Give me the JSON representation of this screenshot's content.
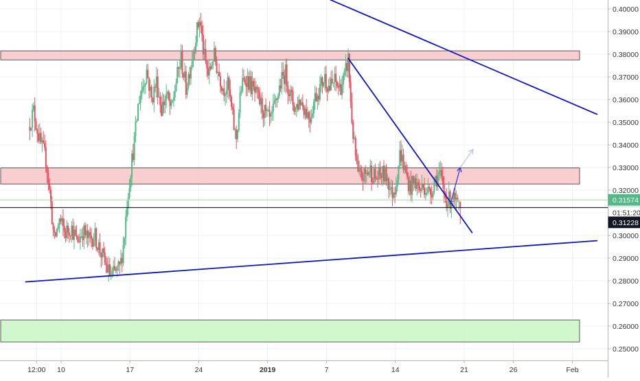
{
  "chart_data": {
    "type": "candlestick",
    "y_axis": {
      "min": 0.2455,
      "max": 0.4035,
      "ticks": [
        "0.40000",
        "0.39000",
        "0.38000",
        "0.37000",
        "0.36000",
        "0.35000",
        "0.34000",
        "0.33000",
        "0.32000",
        "0.31000",
        "0.30000",
        "0.29000",
        "0.28000",
        "0.27000",
        "0.26000",
        "0.25000"
      ]
    },
    "x_axis": {
      "min_day": -2.3,
      "max_day": 44.8,
      "ticks": [
        {
          "label": "12:00",
          "day": -1.5,
          "bold": false
        },
        {
          "label": "10",
          "day": 1,
          "bold": false
        },
        {
          "label": "17",
          "day": 8,
          "bold": false
        },
        {
          "label": "24",
          "day": 15,
          "bold": false
        },
        {
          "label": "2019",
          "day": 22,
          "bold": true
        },
        {
          "label": "7",
          "day": 28,
          "bold": false
        },
        {
          "label": "14",
          "day": 35,
          "bold": false
        },
        {
          "label": "21",
          "day": 42,
          "bold": false
        },
        {
          "label": "26",
          "day": 47,
          "bold": false
        },
        {
          "label": "Feb",
          "day": 53,
          "bold": false
        }
      ]
    },
    "x_axis_range_note": "",
    "zones": [
      {
        "name": "resistance-zone-upper",
        "y_low": 0.3775,
        "y_high": 0.3815,
        "color": "#f8c5c8",
        "border": "#333333"
      },
      {
        "name": "resistance-zone-middle",
        "y_low": 0.3227,
        "y_high": 0.3298,
        "color": "#f8c5c8",
        "border": "#333333"
      },
      {
        "name": "support-zone-lower",
        "y_low": 0.253,
        "y_high": 0.2627,
        "color": "#c9f7c4",
        "border": "#333333"
      }
    ],
    "trendlines": [
      {
        "name": "upper-downtrend-line",
        "x1_day": 28.4,
        "y1": 0.404,
        "x2_day": 55.5,
        "y2": 0.3535,
        "color": "#0a14c8"
      },
      {
        "name": "steep-downtrend-line",
        "x1_day": 30.2,
        "y1": 0.3782,
        "x2_day": 42.8,
        "y2": 0.3013,
        "color": "#0a14c8"
      },
      {
        "name": "ascending-support-line",
        "x1_day": -2.6,
        "y1": 0.2795,
        "x2_day": 55.5,
        "y2": 0.2977,
        "color": "#0a14c8"
      }
    ],
    "projection": {
      "points": [
        [
          40.6,
          0.314
        ],
        [
          41.6,
          0.33
        ],
        [
          42.9,
          0.338
        ]
      ],
      "color": "#2433d6",
      "faded_color": "#b8bde6"
    },
    "horizontal_lines": [
      {
        "name": "current-price-line",
        "y": 0.3123,
        "color": "#000000"
      },
      {
        "name": "reference-price-line",
        "y": 0.3157,
        "color": "#a6dba0"
      }
    ],
    "price_labels": [
      {
        "name": "reference-price-label",
        "text": "0.31574",
        "y": 0.3157,
        "bg": "#53b987",
        "fg": "#ffffff"
      },
      {
        "name": "countdown-label",
        "text": "01:51:20",
        "y": 0.3102,
        "bg": "#ffffff",
        "fg": "#333333"
      },
      {
        "name": "current-price-label",
        "text": "0.31228",
        "y": 0.3058,
        "bg": "#131722",
        "fg": "#ffffff"
      }
    ],
    "price_path": [
      [
        -2.3,
        0.348
      ],
      [
        -1.8,
        0.355
      ],
      [
        -1.2,
        0.342
      ],
      [
        -0.5,
        0.333
      ],
      [
        0.0,
        0.312
      ],
      [
        0.3,
        0.297
      ],
      [
        0.8,
        0.307
      ],
      [
        1.4,
        0.301
      ],
      [
        2.0,
        0.304
      ],
      [
        2.6,
        0.297
      ],
      [
        3.2,
        0.302
      ],
      [
        3.8,
        0.298
      ],
      [
        4.4,
        0.3
      ],
      [
        5.0,
        0.293
      ],
      [
        5.6,
        0.286
      ],
      [
        6.1,
        0.282
      ],
      [
        6.6,
        0.284
      ],
      [
        7.0,
        0.286
      ],
      [
        7.4,
        0.298
      ],
      [
        7.7,
        0.315
      ],
      [
        8.1,
        0.33
      ],
      [
        8.5,
        0.343
      ],
      [
        8.9,
        0.36
      ],
      [
        9.3,
        0.366
      ],
      [
        9.7,
        0.373
      ],
      [
        10.2,
        0.36
      ],
      [
        10.7,
        0.368
      ],
      [
        11.2,
        0.356
      ],
      [
        11.7,
        0.362
      ],
      [
        12.2,
        0.355
      ],
      [
        12.7,
        0.368
      ],
      [
        13.2,
        0.378
      ],
      [
        13.7,
        0.365
      ],
      [
        14.2,
        0.376
      ],
      [
        14.7,
        0.388
      ],
      [
        15.1,
        0.396
      ],
      [
        15.5,
        0.38
      ],
      [
        16.0,
        0.37
      ],
      [
        16.5,
        0.38
      ],
      [
        17.0,
        0.372
      ],
      [
        17.5,
        0.365
      ],
      [
        18.0,
        0.366
      ],
      [
        18.4,
        0.353
      ],
      [
        18.8,
        0.342
      ],
      [
        19.3,
        0.365
      ],
      [
        19.8,
        0.37
      ],
      [
        20.3,
        0.366
      ],
      [
        20.8,
        0.362
      ],
      [
        21.3,
        0.358
      ],
      [
        21.8,
        0.353
      ],
      [
        22.3,
        0.35
      ],
      [
        22.8,
        0.358
      ],
      [
        23.3,
        0.367
      ],
      [
        23.8,
        0.372
      ],
      [
        24.3,
        0.362
      ],
      [
        24.8,
        0.356
      ],
      [
        25.3,
        0.36
      ],
      [
        25.8,
        0.356
      ],
      [
        26.3,
        0.352
      ],
      [
        26.8,
        0.361
      ],
      [
        27.3,
        0.365
      ],
      [
        27.8,
        0.37
      ],
      [
        28.3,
        0.365
      ],
      [
        28.8,
        0.368
      ],
      [
        29.3,
        0.365
      ],
      [
        29.8,
        0.369
      ],
      [
        30.2,
        0.378
      ],
      [
        30.5,
        0.355
      ],
      [
        30.8,
        0.34
      ],
      [
        31.2,
        0.326
      ],
      [
        31.8,
        0.326
      ],
      [
        32.4,
        0.329
      ],
      [
        33.0,
        0.325
      ],
      [
        33.6,
        0.327
      ],
      [
        34.2,
        0.326
      ],
      [
        34.6,
        0.318
      ],
      [
        35.0,
        0.322
      ],
      [
        35.5,
        0.337
      ],
      [
        36.0,
        0.328
      ],
      [
        36.5,
        0.321
      ],
      [
        37.0,
        0.324
      ],
      [
        37.5,
        0.32
      ],
      [
        38.0,
        0.322
      ],
      [
        38.5,
        0.318
      ],
      [
        39.0,
        0.325
      ],
      [
        39.5,
        0.327
      ],
      [
        40.0,
        0.318
      ],
      [
        40.4,
        0.315
      ],
      [
        40.8,
        0.317
      ],
      [
        41.2,
        0.313
      ],
      [
        41.5,
        0.3123
      ]
    ],
    "last_candle": {
      "day": 41.6,
      "open": 0.315,
      "close": 0.3123,
      "high": 0.315,
      "low": 0.305
    }
  }
}
